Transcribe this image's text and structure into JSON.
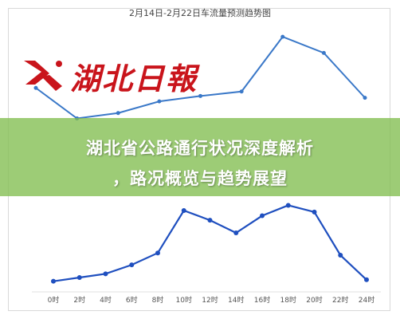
{
  "header": {
    "title": "2月14日-2月22日车流量预测趋势图"
  },
  "logo": {
    "text": "湖北日報",
    "name": "hubei-daily-logo-icon"
  },
  "banner": {
    "line1": "湖北省公路通行状况深度解析",
    "line2": "，路况概览与趋势展望"
  },
  "colors": {
    "line": "#1f4fbf",
    "upper_line": "#3a78c8",
    "logo_red": "#c9141b",
    "banner": "#82be50"
  },
  "chart_data": [
    {
      "type": "line",
      "title": "2月14日-2月22日车流量预测趋势图",
      "xlabel": "",
      "ylabel": "",
      "series": [
        {
          "values": [
            6.2,
            2.8,
            3.4,
            4.7,
            5.3,
            5.8,
            11.9,
            10.1,
            5.1
          ]
        }
      ],
      "ylim": [
        0,
        12
      ],
      "grid": false
    },
    {
      "type": "line",
      "xlabel": "",
      "ylabel": "",
      "categories": [
        "0时",
        "2时",
        "4时",
        "6时",
        "8时",
        "10时",
        "12时",
        "14时",
        "16时",
        "18时",
        "20时",
        "22时",
        "24时"
      ],
      "series": [
        {
          "values": [
            1.0,
            1.5,
            2.0,
            3.2,
            4.8,
            10.5,
            9.2,
            7.5,
            9.8,
            11.2,
            10.3,
            4.5,
            1.2
          ]
        }
      ],
      "ylim": [
        0,
        12
      ],
      "grid": false
    }
  ]
}
